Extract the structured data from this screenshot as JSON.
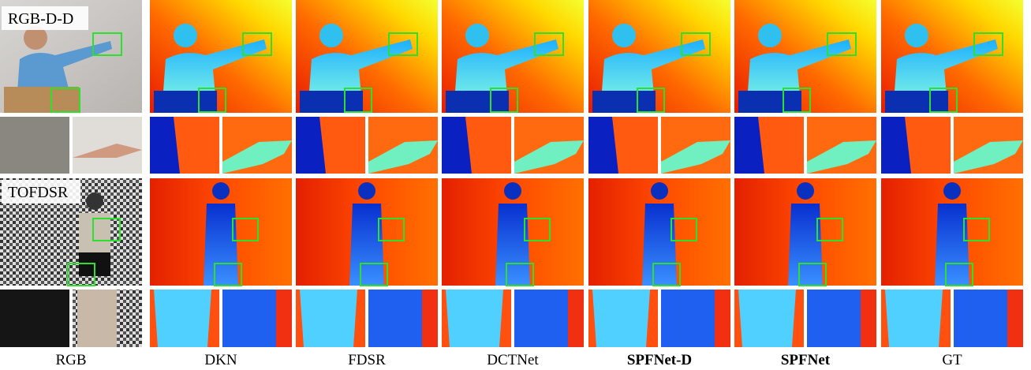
{
  "figure": {
    "datasets": [
      "RGB-D-D",
      "TOFDSR"
    ],
    "columns": [
      "RGB",
      "DKN",
      "FDSR",
      "DCTNet",
      "SPFNet-D",
      "SPFNet",
      "GT"
    ]
  }
}
